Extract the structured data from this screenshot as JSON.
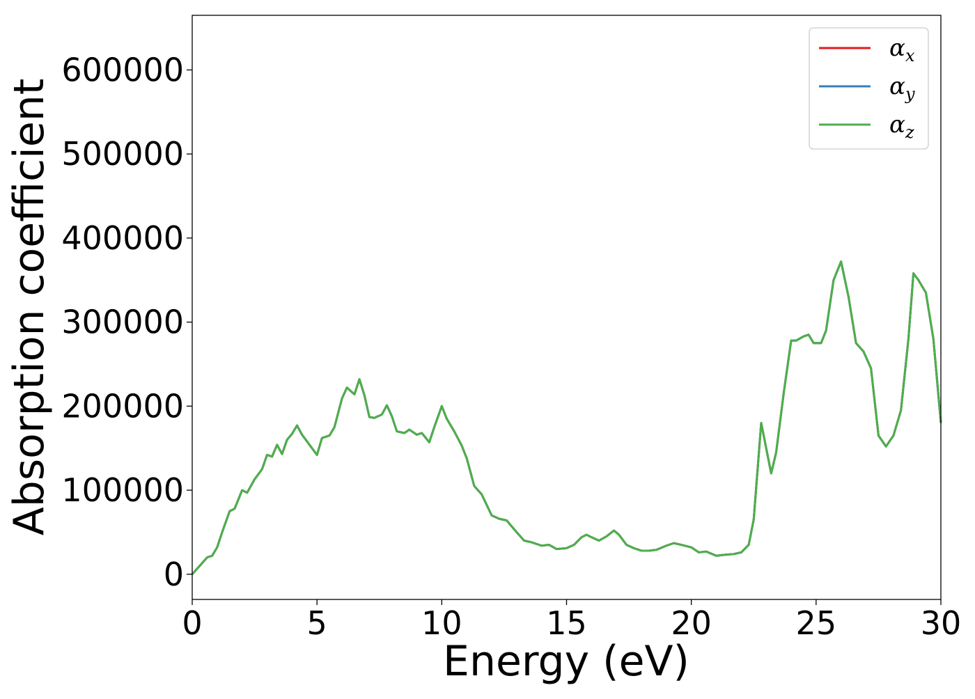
{
  "chart_data": {
    "type": "line",
    "title": "",
    "xlabel": "Energy (eV)",
    "ylabel": "Absorption coefficient",
    "xlim": [
      0,
      30
    ],
    "ylim": [
      -30000,
      665000
    ],
    "xticks": [
      0,
      5,
      10,
      15,
      20,
      25,
      30
    ],
    "xtick_labels": [
      "0",
      "5",
      "10",
      "15",
      "20",
      "25",
      "30"
    ],
    "yticks": [
      0,
      100000,
      200000,
      300000,
      400000,
      500000,
      600000
    ],
    "ytick_labels": [
      "0",
      "100000",
      "200000",
      "300000",
      "400000",
      "500000",
      "600000"
    ],
    "grid": false,
    "legend_position": "top-right",
    "x": [
      0,
      0.3,
      0.6,
      0.8,
      1.0,
      1.2,
      1.5,
      1.7,
      2.0,
      2.2,
      2.5,
      2.8,
      3.0,
      3.2,
      3.4,
      3.6,
      3.8,
      4.0,
      4.2,
      4.4,
      4.6,
      4.8,
      5.0,
      5.2,
      5.5,
      5.7,
      6.0,
      6.2,
      6.5,
      6.7,
      6.9,
      7.1,
      7.3,
      7.6,
      7.8,
      8.0,
      8.2,
      8.5,
      8.7,
      9.0,
      9.2,
      9.5,
      9.7,
      10.0,
      10.2,
      10.5,
      10.8,
      11.0,
      11.3,
      11.6,
      12.0,
      12.3,
      12.6,
      13.0,
      13.3,
      13.6,
      14.0,
      14.3,
      14.6,
      15.0,
      15.3,
      15.6,
      15.8,
      16.0,
      16.3,
      16.6,
      16.9,
      17.1,
      17.4,
      17.7,
      18.0,
      18.3,
      18.6,
      19.0,
      19.3,
      19.6,
      20.0,
      20.3,
      20.6,
      21.0,
      21.3,
      21.7,
      22.0,
      22.3,
      22.5,
      22.8,
      23.0,
      23.2,
      23.4,
      23.7,
      24.0,
      24.2,
      24.5,
      24.7,
      24.9,
      25.2,
      25.4,
      25.7,
      26.0,
      26.3,
      26.6,
      26.9,
      27.2,
      27.5,
      27.8,
      28.1,
      28.4,
      28.7,
      28.9,
      29.1,
      29.4,
      29.7,
      30.0
    ],
    "series": [
      {
        "name": "α_x",
        "color": "#e41a1c",
        "values": [
          0,
          10000,
          20000,
          22000,
          32000,
          50000,
          75000,
          78000,
          100000,
          97000,
          113000,
          125000,
          142000,
          140000,
          154000,
          143000,
          160000,
          167000,
          177000,
          166000,
          158000,
          150000,
          142000,
          162000,
          165000,
          175000,
          209000,
          222000,
          214000,
          232000,
          213000,
          187000,
          186000,
          190000,
          201000,
          188000,
          170000,
          168000,
          172000,
          166000,
          168000,
          157000,
          175000,
          200000,
          185000,
          170000,
          153000,
          138000,
          105000,
          95000,
          70000,
          66000,
          64000,
          50000,
          40000,
          38000,
          34000,
          35000,
          30000,
          31000,
          35000,
          44000,
          47000,
          44000,
          40000,
          45000,
          52000,
          47000,
          35000,
          31000,
          28000,
          28000,
          29000,
          34000,
          37000,
          35000,
          32000,
          26000,
          27000,
          22000,
          23000,
          24000,
          26000,
          35000,
          65000,
          180000,
          150000,
          120000,
          145000,
          215000,
          278000,
          278000,
          283000,
          285000,
          275000,
          275000,
          290000,
          350000,
          372000,
          330000,
          275000,
          265000,
          245000,
          165000,
          152000,
          165000,
          195000,
          280000,
          358000,
          350000,
          335000,
          280000,
          180000
        ]
      },
      {
        "name": "α_y",
        "color": "#377eb8",
        "values": [
          0,
          10000,
          20000,
          22000,
          32000,
          50000,
          75000,
          78000,
          100000,
          97000,
          113000,
          125000,
          142000,
          140000,
          154000,
          143000,
          160000,
          167000,
          177000,
          166000,
          158000,
          150000,
          142000,
          162000,
          165000,
          175000,
          209000,
          222000,
          214000,
          232000,
          213000,
          187000,
          186000,
          190000,
          201000,
          188000,
          170000,
          168000,
          172000,
          166000,
          168000,
          157000,
          175000,
          200000,
          185000,
          170000,
          153000,
          138000,
          105000,
          95000,
          70000,
          66000,
          64000,
          50000,
          40000,
          38000,
          34000,
          35000,
          30000,
          31000,
          35000,
          44000,
          47000,
          44000,
          40000,
          45000,
          52000,
          47000,
          35000,
          31000,
          28000,
          28000,
          29000,
          34000,
          37000,
          35000,
          32000,
          26000,
          27000,
          22000,
          23000,
          24000,
          26000,
          35000,
          65000,
          180000,
          150000,
          120000,
          145000,
          215000,
          278000,
          278000,
          283000,
          285000,
          275000,
          275000,
          290000,
          350000,
          372000,
          330000,
          275000,
          265000,
          245000,
          165000,
          152000,
          165000,
          195000,
          280000,
          358000,
          350000,
          335000,
          280000,
          180000
        ]
      },
      {
        "name": "α_z",
        "color": "#4daf4a",
        "values": [
          0,
          10000,
          20000,
          22000,
          32000,
          50000,
          75000,
          78000,
          100000,
          97000,
          113000,
          125000,
          142000,
          140000,
          154000,
          143000,
          160000,
          167000,
          177000,
          166000,
          158000,
          150000,
          142000,
          162000,
          165000,
          175000,
          209000,
          222000,
          214000,
          232000,
          213000,
          187000,
          186000,
          190000,
          201000,
          188000,
          170000,
          168000,
          172000,
          166000,
          168000,
          157000,
          175000,
          200000,
          185000,
          170000,
          153000,
          138000,
          105000,
          95000,
          70000,
          66000,
          64000,
          50000,
          40000,
          38000,
          34000,
          35000,
          30000,
          31000,
          35000,
          44000,
          47000,
          44000,
          40000,
          45000,
          52000,
          47000,
          35000,
          31000,
          28000,
          28000,
          29000,
          34000,
          37000,
          35000,
          32000,
          26000,
          27000,
          22000,
          23000,
          24000,
          26000,
          35000,
          65000,
          180000,
          150000,
          120000,
          145000,
          215000,
          278000,
          278000,
          283000,
          285000,
          275000,
          275000,
          290000,
          350000,
          372000,
          330000,
          275000,
          265000,
          245000,
          165000,
          152000,
          165000,
          195000,
          280000,
          358000,
          350000,
          335000,
          280000,
          180000
        ]
      }
    ],
    "legend": [
      {
        "symbol": "α",
        "sub": "x",
        "color": "#e41a1c"
      },
      {
        "symbol": "α",
        "sub": "y",
        "color": "#377eb8"
      },
      {
        "symbol": "α",
        "sub": "z",
        "color": "#4daf4a"
      }
    ]
  }
}
